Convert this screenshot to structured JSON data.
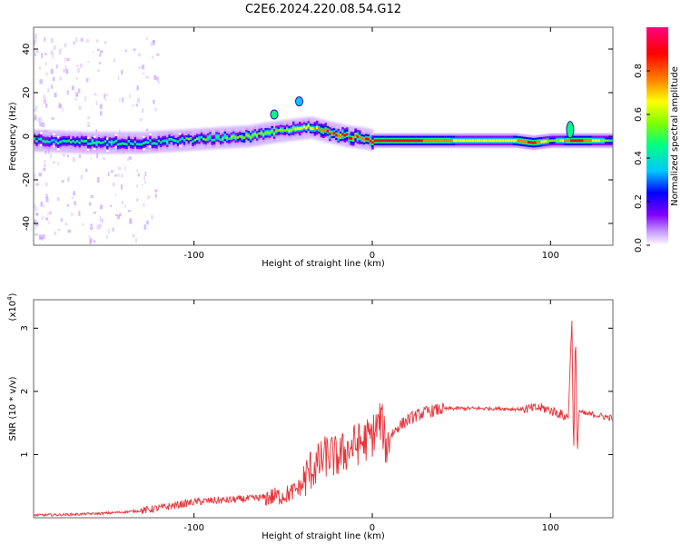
{
  "title": "C2E6.2024.220.08.54.G12",
  "top_panel": {
    "ylabel": "Frequency (Hz)",
    "xlabel": "Height of straight line (km)",
    "colorbar_label": "Normalized spectral amplitude"
  },
  "bottom_panel": {
    "ylabel": "SNR (10 * v/v)",
    "exponent_label": "(x10",
    "exponent_power": "4",
    "exponent_close": ")",
    "xlabel": "Height of straight line (km)"
  },
  "chart_data": [
    {
      "type": "heatmap",
      "title": "C2E6.2024.220.08.54.G12",
      "xlabel": "Height of straight line (km)",
      "ylabel": "Frequency (Hz)",
      "xlim": [
        -190,
        135
      ],
      "ylim": [
        -50,
        50
      ],
      "x_ticks": [
        -100,
        0,
        100
      ],
      "y_ticks": [
        -40,
        -20,
        0,
        20,
        40
      ],
      "colorbar": {
        "label": "Normalized spectral amplitude",
        "range": [
          0,
          1
        ],
        "ticks": [
          0.0,
          0.2,
          0.4,
          0.6,
          0.8
        ],
        "colormap": [
          "#ffffff",
          "#c8a0ff",
          "#8000ff",
          "#0000ff",
          "#00c8ff",
          "#00ff80",
          "#80ff00",
          "#ffff00",
          "#ff8000",
          "#ff0000",
          "#ff0080"
        ]
      },
      "ridge": {
        "x": [
          -190,
          -160,
          -130,
          -110,
          -90,
          -70,
          -55,
          -45,
          -35,
          -25,
          -15,
          -5,
          0,
          20,
          60,
          80,
          90,
          100,
          105,
          110,
          115,
          135
        ],
        "frequency": [
          -2,
          -3,
          -3,
          -2,
          -1,
          0,
          2,
          3,
          4,
          2,
          0,
          -1,
          -2,
          -2,
          -2,
          -2,
          -3,
          -2,
          -2,
          -2,
          -2,
          -2
        ],
        "amplitude": [
          0.45,
          0.5,
          0.5,
          0.5,
          0.55,
          0.6,
          0.6,
          0.65,
          0.7,
          0.85,
          0.9,
          0.8,
          0.9,
          0.95,
          0.7,
          0.8,
          0.95,
          0.6,
          0.7,
          0.9,
          0.95,
          0.55
        ]
      },
      "features": [
        {
          "x": -55,
          "frequency": 10,
          "amplitude": 0.5
        },
        {
          "x": -41,
          "frequency": 16,
          "amplitude": 0.4
        },
        {
          "x": 111,
          "frequency": 3,
          "amplitude": 0.5
        }
      ]
    },
    {
      "type": "line",
      "xlabel": "Height of straight line (km)",
      "ylabel": "SNR (10 * v/v)",
      "y_scale_note": "x10^4",
      "xlim": [
        -190,
        135
      ],
      "ylim": [
        0,
        3.45
      ],
      "x_ticks": [
        -100,
        0,
        100
      ],
      "y_ticks": [
        1,
        2,
        3
      ],
      "color": "#e8333a",
      "series": [
        {
          "x": [
            -190,
            -170,
            -150,
            -140,
            -130,
            -120,
            -110,
            -100,
            -90,
            -80,
            -70,
            -60,
            -50,
            -45,
            -40,
            -35,
            -30,
            -25,
            -20,
            -15,
            -10,
            -5,
            0,
            5,
            8,
            10,
            15,
            20,
            25,
            30,
            35,
            40,
            45,
            50,
            60,
            70,
            80,
            85,
            90,
            95,
            100,
            105,
            108,
            110,
            112,
            113,
            114,
            115,
            116,
            118,
            120,
            125,
            130,
            135
          ],
          "y": [
            0.04,
            0.05,
            0.07,
            0.09,
            0.11,
            0.15,
            0.2,
            0.25,
            0.27,
            0.28,
            0.3,
            0.32,
            0.35,
            0.4,
            0.5,
            0.75,
            0.85,
            1.0,
            0.95,
            1.05,
            1.15,
            1.2,
            1.3,
            1.55,
            1.1,
            1.3,
            1.45,
            1.55,
            1.62,
            1.67,
            1.7,
            1.72,
            1.73,
            1.73,
            1.73,
            1.73,
            1.72,
            1.72,
            1.73,
            1.74,
            1.7,
            1.65,
            1.6,
            1.6,
            3.2,
            0.9,
            3.0,
            1.0,
            1.7,
            1.65,
            1.64,
            1.63,
            1.6,
            1.58
          ]
        }
      ]
    }
  ]
}
